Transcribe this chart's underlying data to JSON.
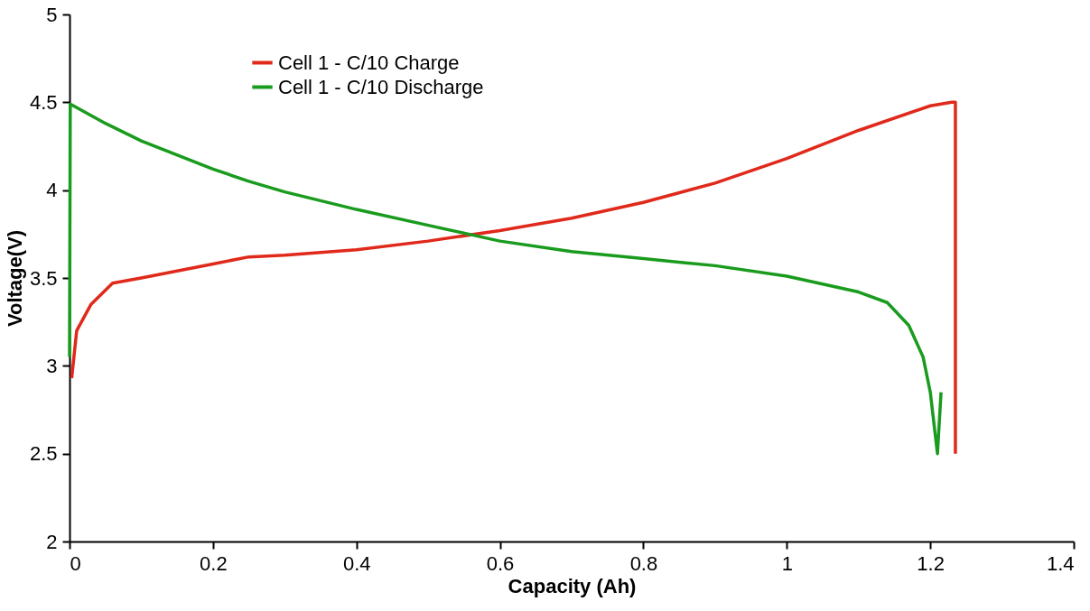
{
  "chart_data": {
    "type": "line",
    "xlabel": "Capacity (Ah)",
    "ylabel": "Voltage(V)",
    "xlim": [
      0,
      1.4
    ],
    "ylim": [
      2,
      5
    ],
    "xticks": [
      0,
      0.2,
      0.4,
      0.6,
      0.8,
      1,
      1.2,
      1.4
    ],
    "yticks": [
      2,
      2.5,
      3,
      3.5,
      4,
      4.5,
      5
    ],
    "grid": false,
    "legend": "top left",
    "marker": "none",
    "line_style": "solid",
    "series": [
      {
        "name": "Cell 1 - C/10 Charge",
        "color": "#e0291b",
        "x": [
          0.003,
          0.01,
          0.03,
          0.06,
          0.1,
          0.2,
          0.25,
          0.3,
          0.4,
          0.5,
          0.6,
          0.7,
          0.8,
          0.9,
          1.0,
          1.1,
          1.2,
          1.23,
          1.235,
          1.235
        ],
        "values": [
          2.93,
          3.2,
          3.35,
          3.47,
          3.5,
          3.58,
          3.62,
          3.63,
          3.66,
          3.71,
          3.77,
          3.84,
          3.93,
          4.04,
          4.18,
          4.34,
          4.48,
          4.5,
          4.5,
          2.5
        ]
      },
      {
        "name": "Cell 1 - C/10 Discharge",
        "color": "#199b1e",
        "x": [
          0,
          0.001,
          0.05,
          0.1,
          0.2,
          0.25,
          0.3,
          0.4,
          0.5,
          0.6,
          0.7,
          0.8,
          0.9,
          1.0,
          1.1,
          1.14,
          1.17,
          1.19,
          1.2,
          1.21,
          1.215
        ],
        "values": [
          3.05,
          4.49,
          4.38,
          4.28,
          4.12,
          4.05,
          3.99,
          3.89,
          3.8,
          3.71,
          3.65,
          3.61,
          3.57,
          3.51,
          3.42,
          3.36,
          3.23,
          3.05,
          2.85,
          2.5,
          2.85
        ]
      }
    ]
  }
}
